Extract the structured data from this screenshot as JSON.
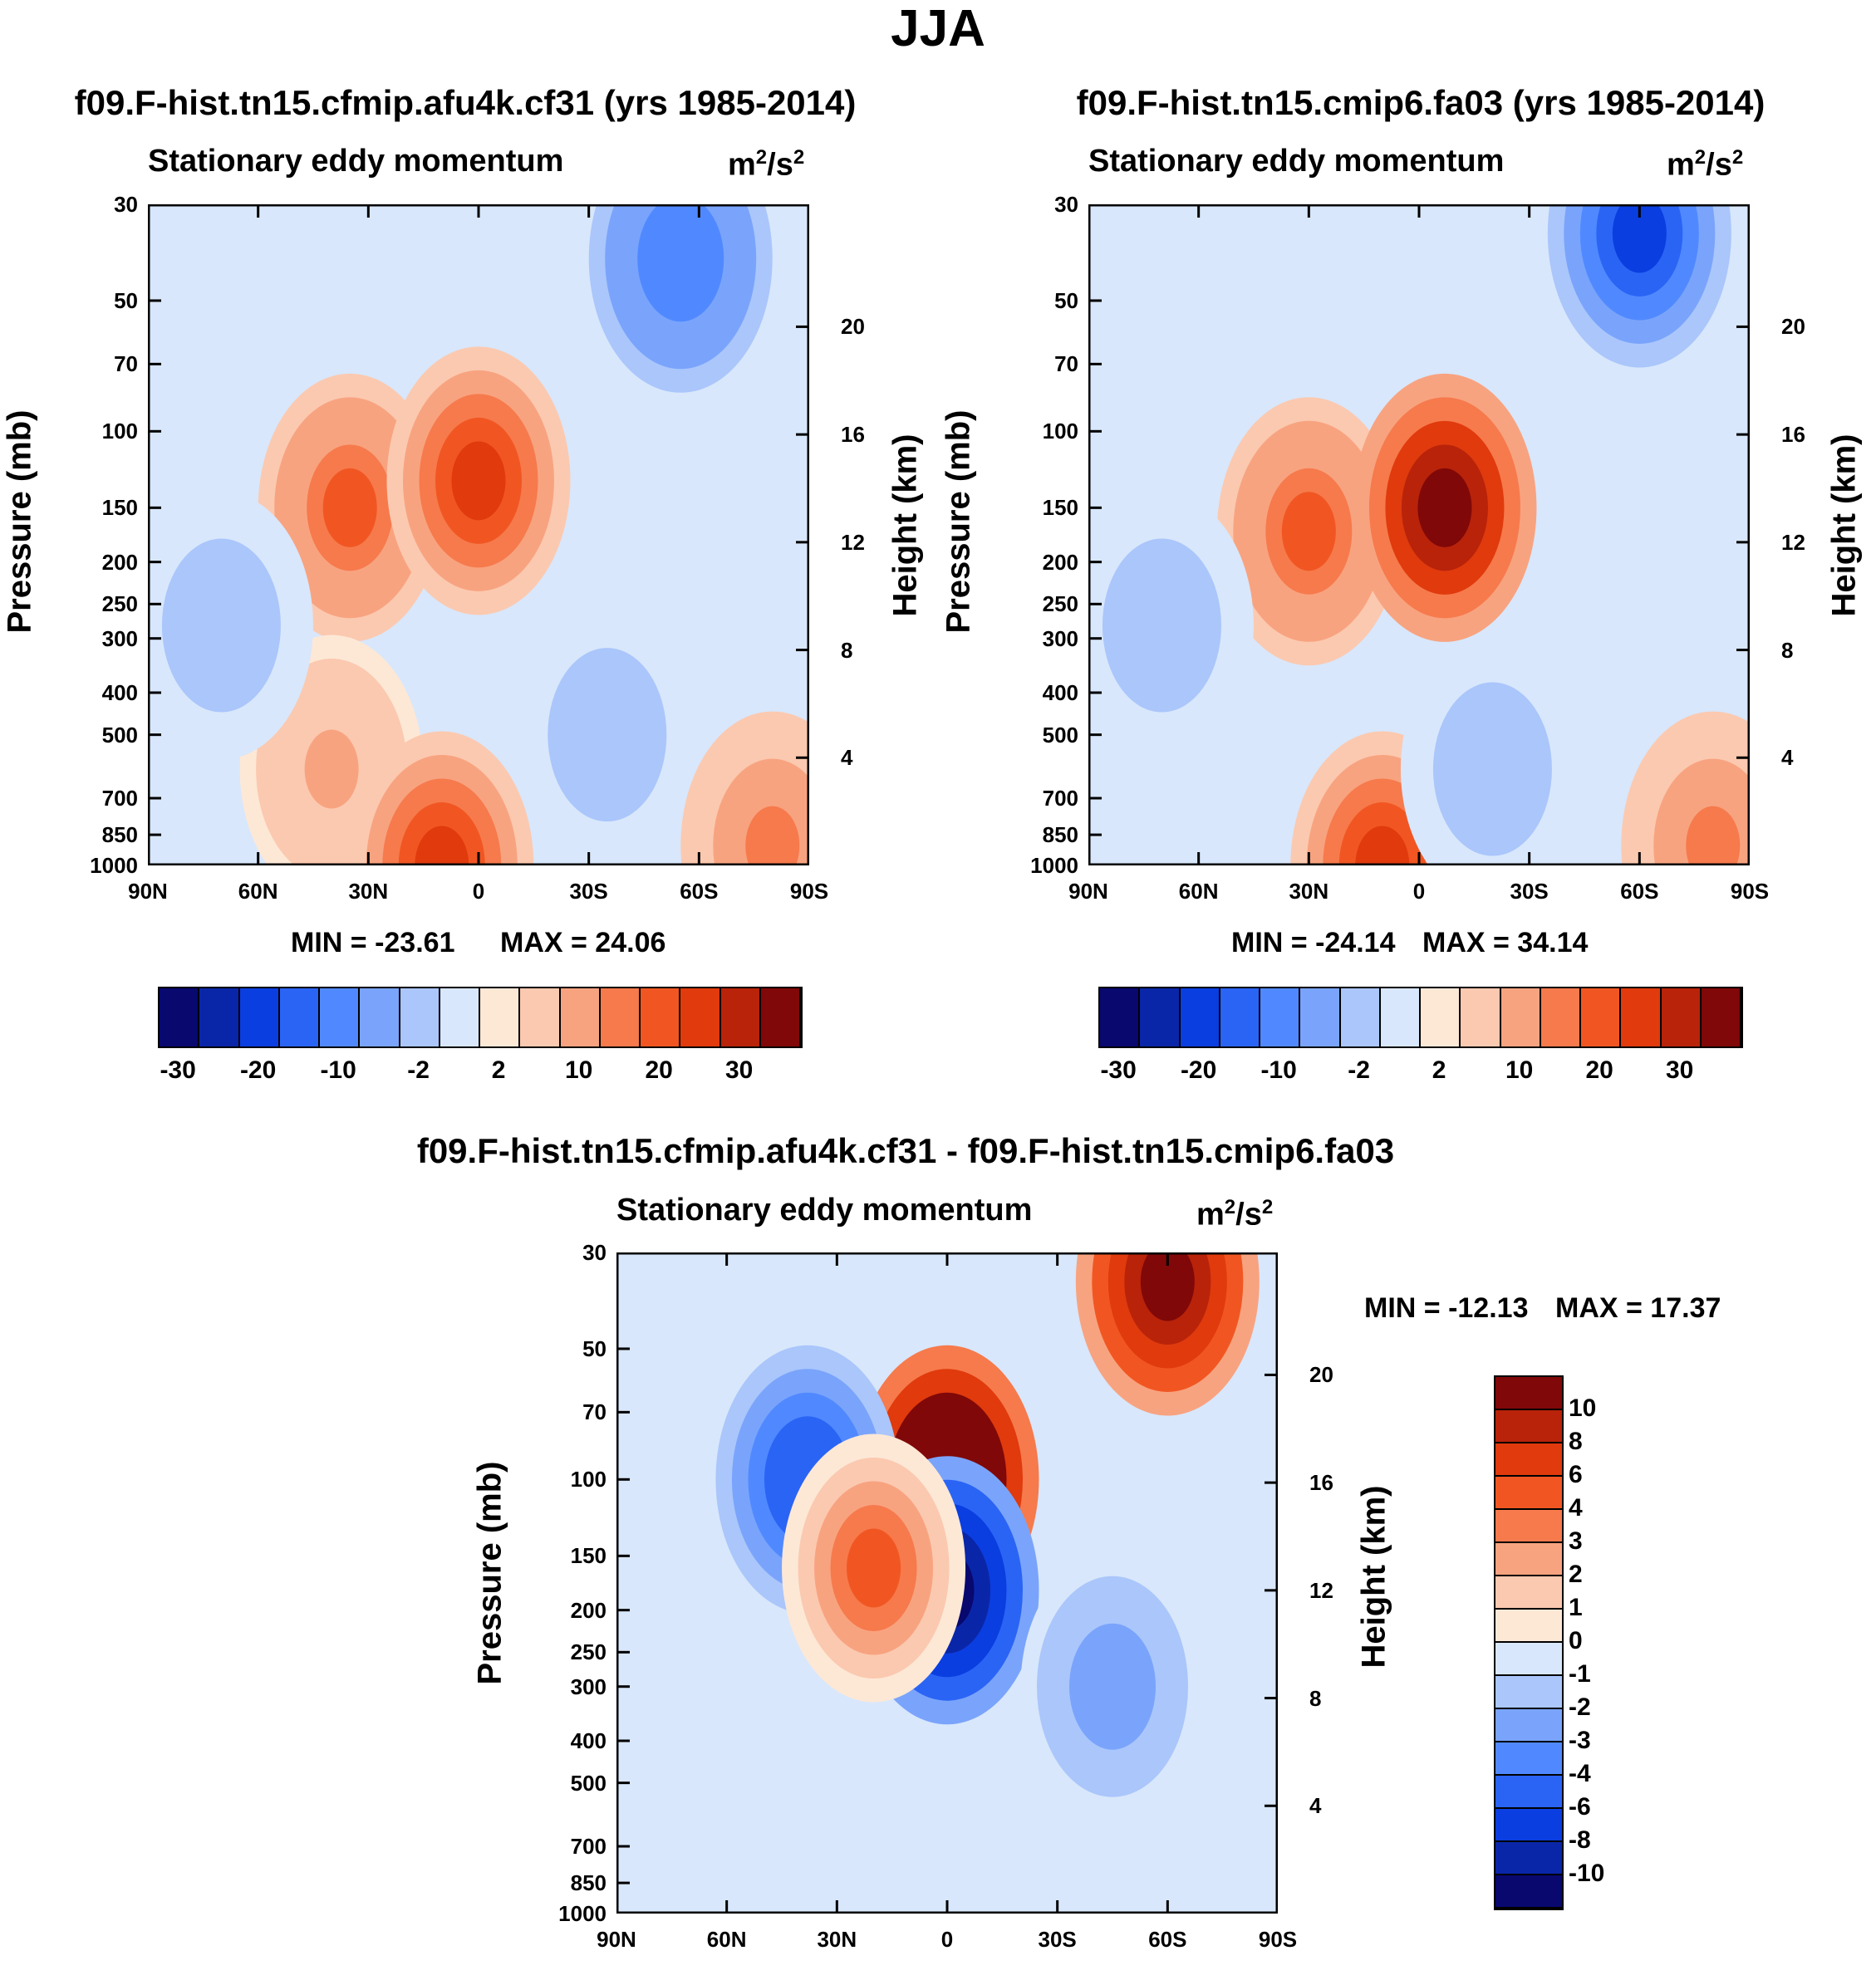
{
  "title": "JJA",
  "colors": {
    "neg": [
      "#08086f",
      "#0a26a8",
      "#0a3ee0",
      "#2a64f5",
      "#5089ff",
      "#7aa4fb",
      "#aac6fb",
      "#d8e7fb"
    ],
    "pos": [
      "#fde8d6",
      "#fbc9b0",
      "#f8a380",
      "#f67a4c",
      "#f15622",
      "#e03a0d",
      "#b8230a",
      "#800808"
    ],
    "diff_neg": [
      "#08086f",
      "#0a26a8",
      "#0a3ee0",
      "#2a64f5",
      "#5089ff",
      "#7aa4fb",
      "#aac6fb",
      "#d8e7fb"
    ],
    "diff_pos": [
      "#fde8d6",
      "#fbc9b0",
      "#f8a380",
      "#f67a4c",
      "#f15622",
      "#e03a0d",
      "#b8230a",
      "#800808"
    ]
  },
  "chart_data": [
    {
      "type": "contour",
      "title": "f09.F-hist.tn15.cfmip.afu4k.cf31 (yrs 1985-2014)",
      "subtitle_left": "Stationary eddy momentum",
      "units": "m",
      "units_sup1": "2",
      "units_mid": "/s",
      "units_sup2": "2",
      "ylabel": "Pressure (mb)",
      "ylabel_right": "Height (km)",
      "x_ticks": [
        "90N",
        "60N",
        "30N",
        "0",
        "30S",
        "60S",
        "90S"
      ],
      "y_ticks": [
        "30",
        "50",
        "70",
        "100",
        "150",
        "200",
        "250",
        "300",
        "400",
        "500",
        "700",
        "850",
        "1000"
      ],
      "y_ticks_right": [
        "20",
        "16",
        "12",
        "8",
        "4"
      ],
      "min": "MIN = -23.61",
      "max": "MAX =  24.06",
      "colorbar_labels": [
        "-30",
        "-20",
        "-10",
        "-2",
        "2",
        "10",
        "20",
        "30"
      ],
      "colorbar_levels": [
        -30,
        -25,
        -20,
        -15,
        -10,
        -5,
        -2,
        0,
        2,
        5,
        10,
        15,
        20,
        25,
        30
      ],
      "features": [
        {
          "lat": 35,
          "p": 150,
          "value": 15
        },
        {
          "lat": 0,
          "p": 130,
          "value": 24.06
        },
        {
          "lat": 40,
          "p": 600,
          "value": 5
        },
        {
          "lat": 10,
          "p": 1000,
          "value": 20
        },
        {
          "lat": -55,
          "p": 40,
          "value": -15
        },
        {
          "lat": -35,
          "p": 500,
          "value": -5
        },
        {
          "lat": 70,
          "p": 280,
          "value": -5
        },
        {
          "lat": -80,
          "p": 900,
          "value": 10
        }
      ]
    },
    {
      "type": "contour",
      "title": "f09.F-hist.tn15.cmip6.fa03 (yrs 1985-2014)",
      "subtitle_left": "Stationary eddy momentum",
      "units": "m",
      "units_sup1": "2",
      "units_mid": "/s",
      "units_sup2": "2",
      "ylabel": "Pressure (mb)",
      "ylabel_right": "Height (km)",
      "x_ticks": [
        "90N",
        "60N",
        "30N",
        "0",
        "30S",
        "60S",
        "90S"
      ],
      "y_ticks": [
        "30",
        "50",
        "70",
        "100",
        "150",
        "200",
        "250",
        "300",
        "400",
        "500",
        "700",
        "850",
        "1000"
      ],
      "y_ticks_right": [
        "20",
        "16",
        "12",
        "8",
        "4"
      ],
      "min": "MIN = -24.14",
      "max": "MAX =  34.14",
      "colorbar_labels": [
        "-30",
        "-20",
        "-10",
        "-2",
        "2",
        "10",
        "20",
        "30"
      ],
      "colorbar_levels": [
        -30,
        -25,
        -20,
        -15,
        -10,
        -5,
        -2,
        0,
        2,
        5,
        10,
        15,
        20,
        25,
        30
      ],
      "features": [
        {
          "lat": 30,
          "p": 170,
          "value": 15
        },
        {
          "lat": -7,
          "p": 150,
          "value": 34.14
        },
        {
          "lat": 10,
          "p": 1000,
          "value": 20
        },
        {
          "lat": -60,
          "p": 35,
          "value": -24.14
        },
        {
          "lat": -20,
          "p": 600,
          "value": -5
        },
        {
          "lat": 70,
          "p": 280,
          "value": -5
        },
        {
          "lat": -80,
          "p": 900,
          "value": 10
        }
      ]
    },
    {
      "type": "contour",
      "title": "f09.F-hist.tn15.cfmip.afu4k.cf31 - f09.F-hist.tn15.cmip6.fa03",
      "subtitle_left": "Stationary eddy momentum",
      "units": "m",
      "units_sup1": "2",
      "units_mid": "/s",
      "units_sup2": "2",
      "ylabel": "Pressure (mb)",
      "ylabel_right": "Height (km)",
      "x_ticks": [
        "90N",
        "60N",
        "30N",
        "0",
        "30S",
        "60S",
        "90S"
      ],
      "y_ticks": [
        "30",
        "50",
        "70",
        "100",
        "150",
        "200",
        "250",
        "300",
        "400",
        "500",
        "700",
        "850",
        "1000"
      ],
      "y_ticks_right": [
        "20",
        "16",
        "12",
        "8",
        "4"
      ],
      "min": "MIN = -12.13",
      "max": "MAX =  17.37",
      "colorbar_labels": [
        "10",
        "8",
        "6",
        "4",
        "3",
        "2",
        "1",
        "0",
        "-1",
        "-2",
        "-3",
        "-4",
        "-6",
        "-8",
        "-10"
      ],
      "colorbar_levels": [
        -10,
        -8,
        -6,
        -4,
        -3,
        -2,
        -1,
        0,
        1,
        2,
        3,
        4,
        6,
        8,
        10
      ],
      "features": [
        {
          "lat": 0,
          "p": 100,
          "value": 17.37
        },
        {
          "lat": -60,
          "p": 35,
          "value": 10
        },
        {
          "lat": 0,
          "p": 180,
          "value": -12.13
        },
        {
          "lat": 38,
          "p": 100,
          "value": -6
        },
        {
          "lat": 20,
          "p": 160,
          "value": 4
        },
        {
          "lat": -45,
          "p": 300,
          "value": -3
        }
      ]
    }
  ]
}
